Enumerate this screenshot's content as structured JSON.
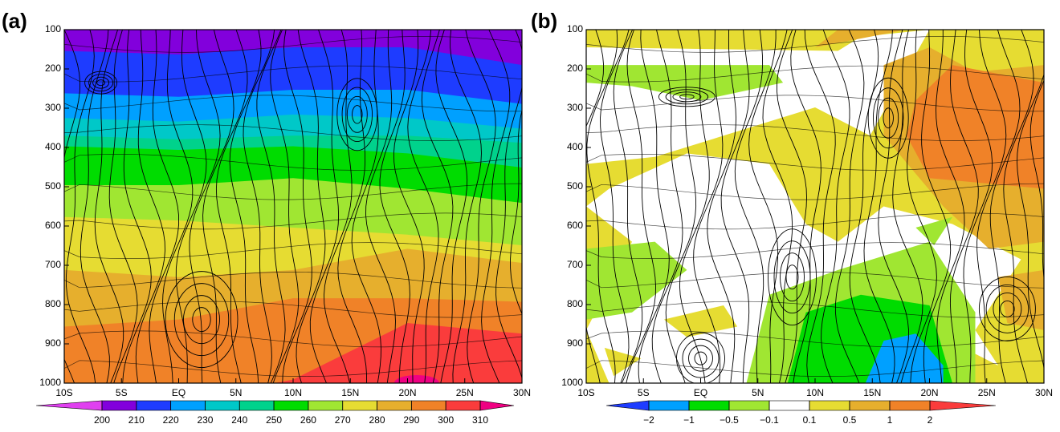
{
  "chart_data": [
    {
      "type": "contour",
      "label": "(a)",
      "xlim": [
        -10,
        30
      ],
      "xticks": [
        {
          "value": -10,
          "label": "10S"
        },
        {
          "value": -5,
          "label": "5S"
        },
        {
          "value": 0,
          "label": "EQ"
        },
        {
          "value": 5,
          "label": "5N"
        },
        {
          "value": 10,
          "label": "10N"
        },
        {
          "value": 15,
          "label": "15N"
        },
        {
          "value": 20,
          "label": "20N"
        },
        {
          "value": 25,
          "label": "25N"
        },
        {
          "value": 30,
          "label": "30N"
        }
      ],
      "ylim": [
        1000,
        100
      ],
      "yticks": [
        100,
        200,
        300,
        400,
        500,
        600,
        700,
        800,
        900,
        1000
      ],
      "levels": [
        200,
        210,
        220,
        230,
        240,
        250,
        260,
        270,
        280,
        290,
        300,
        310
      ],
      "colors": [
        "#e040f0",
        "#8200dc",
        "#1e3cff",
        "#00a0ff",
        "#00c8c8",
        "#00d28c",
        "#00dc00",
        "#a0e632",
        "#e6dc32",
        "#e6af2d",
        "#f08228",
        "#fa3c3c",
        "#f00082"
      ]
    },
    {
      "type": "contour",
      "label": "(b)",
      "xlim": [
        -10,
        30
      ],
      "xticks": [
        {
          "value": -10,
          "label": "10S"
        },
        {
          "value": -5,
          "label": "5S"
        },
        {
          "value": 0,
          "label": "EQ"
        },
        {
          "value": 5,
          "label": "5N"
        },
        {
          "value": 10,
          "label": "10N"
        },
        {
          "value": 15,
          "label": "15N"
        },
        {
          "value": 20,
          "label": "20N"
        },
        {
          "value": 25,
          "label": "25N"
        },
        {
          "value": 30,
          "label": "30N"
        }
      ],
      "ylim": [
        1000,
        100
      ],
      "yticks": [
        100,
        200,
        300,
        400,
        500,
        600,
        700,
        800,
        900,
        1000
      ],
      "levels": [
        {
          "value": -2,
          "label": "−2"
        },
        {
          "value": -1,
          "label": "−1"
        },
        {
          "value": -0.5,
          "label": "−0.5"
        },
        {
          "value": -0.1,
          "label": "−0.1"
        },
        0.1,
        0.5,
        1,
        2
      ],
      "colors": [
        "#1e3cff",
        "#00a0ff",
        "#00dc00",
        "#a0e632",
        "#ffffff",
        "#e6dc32",
        "#e6af2d",
        "#f08228",
        "#fa3c3c"
      ]
    }
  ]
}
